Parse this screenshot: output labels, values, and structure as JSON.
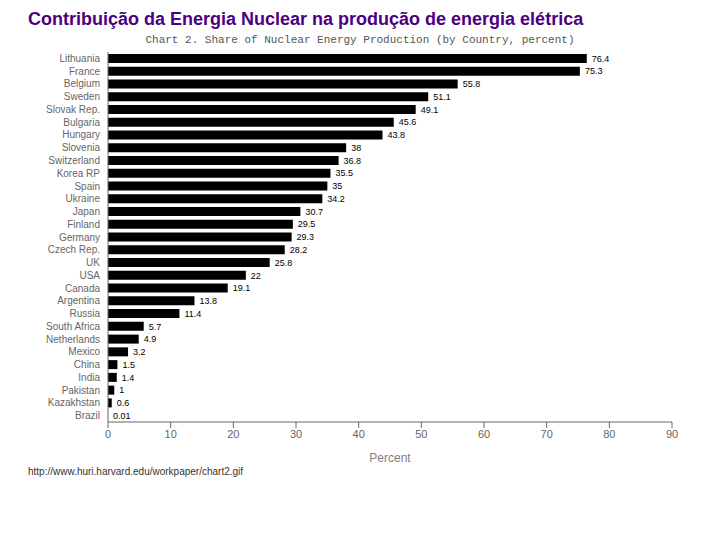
{
  "chart_data": {
    "type": "bar",
    "orientation": "horizontal",
    "title": "Contribuição da Energia Nuclear na produção de energia elétrica",
    "subtitle": "Chart 2. Share of Nuclear Energy Production (by Country, percent)",
    "xlabel": "Percent",
    "categories": [
      "Lithuania",
      "France",
      "Belgium",
      "Sweden",
      "Slovak Rep.",
      "Bulgaria",
      "Hungary",
      "Slovenia",
      "Switzerland",
      "Korea RP",
      "Spain",
      "Ukraine",
      "Japan",
      "Finland",
      "Germany",
      "Czech Rep.",
      "UK",
      "USA",
      "Canada",
      "Argentina",
      "Russia",
      "South Africa",
      "Netherlands",
      "Mexico",
      "China",
      "India",
      "Pakistan",
      "Kazakhstan",
      "Brazil"
    ],
    "values": [
      76.4,
      75.3,
      55.8,
      51.1,
      49.1,
      45.6,
      43.8,
      38,
      36.8,
      35.5,
      35,
      34.2,
      30.7,
      29.5,
      29.3,
      28.2,
      25.8,
      22,
      19.1,
      13.8,
      11.4,
      5.7,
      4.9,
      3.2,
      1.5,
      1.4,
      1,
      0.6,
      0.01
    ],
    "color": "#000000",
    "xlim": [
      0,
      90
    ],
    "xticks": [
      0,
      10,
      20,
      30,
      40,
      50,
      60,
      70,
      80,
      90
    ],
    "data_labels": true,
    "grid": false,
    "annotations": [
      "http://www.huri.harvard.edu/workpaper/chart2.gif"
    ]
  }
}
